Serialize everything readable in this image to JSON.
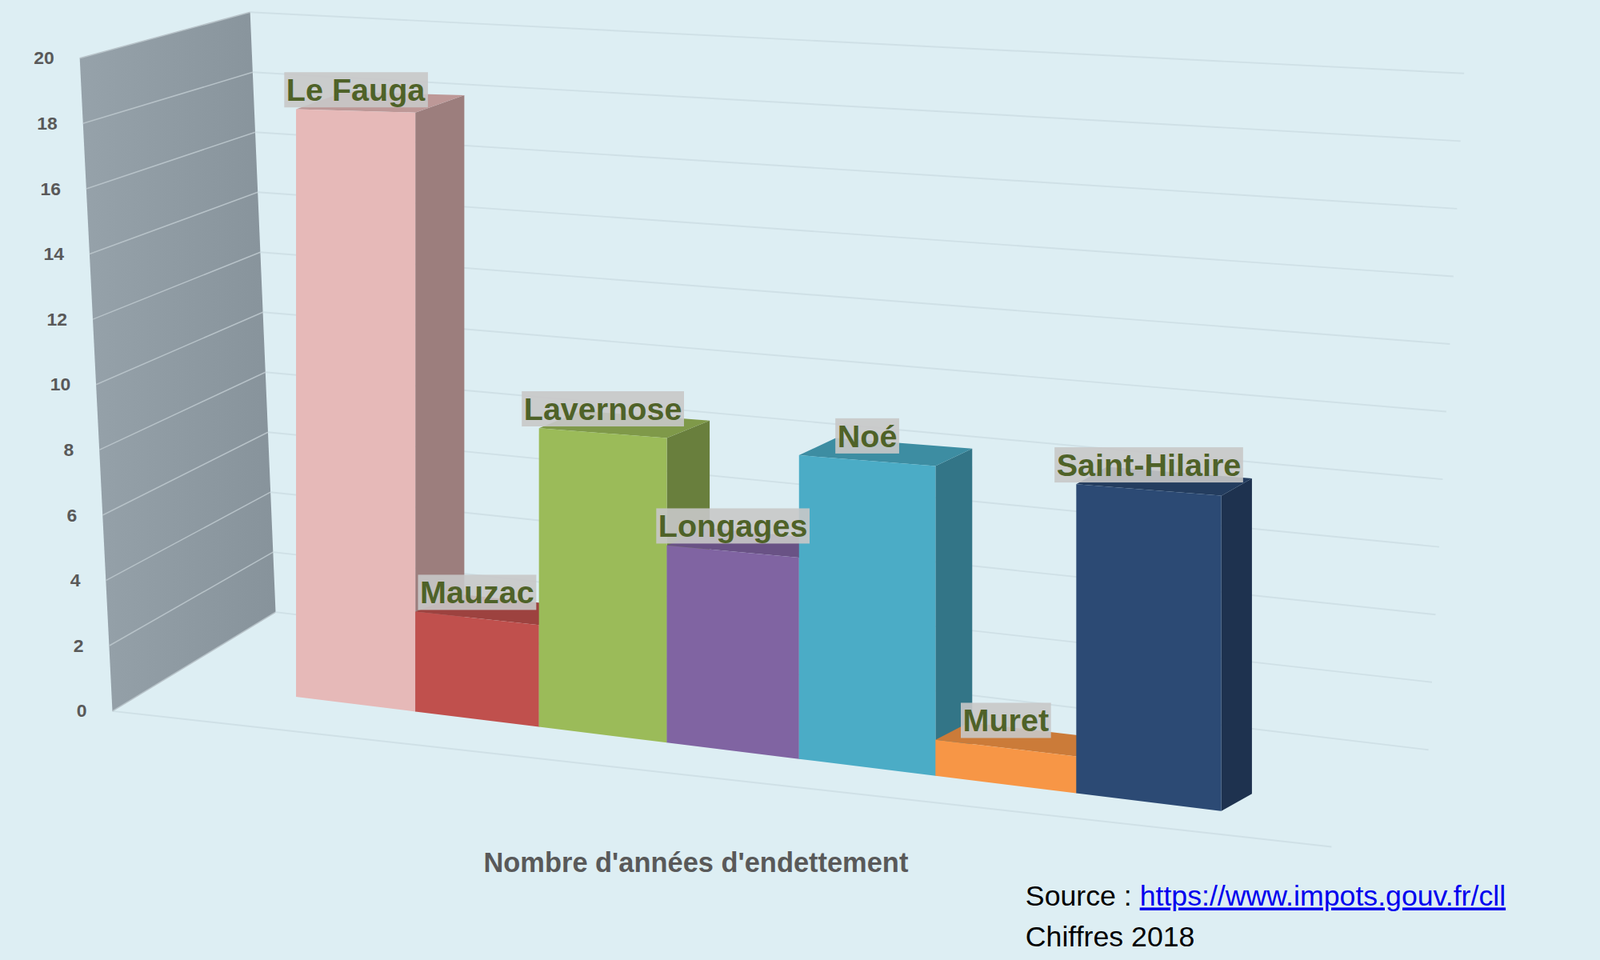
{
  "chart_data": {
    "type": "bar",
    "x_label": "Nombre d'années d'endettement",
    "categories": [
      "Le Fauga",
      "Mauzac",
      "Lavernose",
      "Longages",
      "Noé",
      "Muret",
      "Saint-Hilaire"
    ],
    "values": [
      18,
      3,
      8.8,
      5.7,
      8.6,
      1,
      8.4
    ],
    "colors": [
      "#e6b9b8",
      "#c0504d",
      "#9bbb59",
      "#8064a2",
      "#4bacc6",
      "#f79646",
      "#2c4a74"
    ],
    "ylim": [
      0,
      20
    ],
    "yticks": [
      0,
      2,
      4,
      6,
      8,
      10,
      12,
      14,
      16,
      18,
      20
    ],
    "grid": true,
    "annotations": [
      "Source : https://www.impots.gouv.fr/cll",
      "Chiffres 2018"
    ]
  }
}
